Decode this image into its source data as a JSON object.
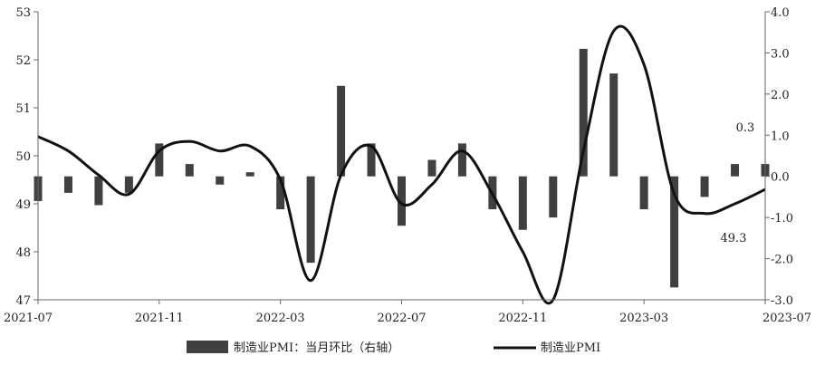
{
  "chart_data": {
    "type": "bar+line",
    "x": [
      "2021-07",
      "2021-08",
      "2021-09",
      "2021-10",
      "2021-11",
      "2021-12",
      "2022-01",
      "2022-02",
      "2022-03",
      "2022-04",
      "2022-05",
      "2022-06",
      "2022-07",
      "2022-08",
      "2022-09",
      "2022-10",
      "2022-11",
      "2022-12",
      "2023-01",
      "2023-02",
      "2023-03",
      "2023-04",
      "2023-05",
      "2023-06",
      "2023-07"
    ],
    "x_tick_labels": [
      "2021-07",
      "2021-11",
      "2022-03",
      "2022-07",
      "2022-11",
      "2023-03",
      "2023-07"
    ],
    "left_axis": {
      "ylim": [
        47,
        53
      ],
      "ticks": [
        "47",
        "48",
        "49",
        "50",
        "51",
        "52",
        "53"
      ]
    },
    "right_axis": {
      "ylim": [
        -3.0,
        4.0
      ],
      "ticks": [
        "-3.0",
        "-2.0",
        "-1.0",
        "0.0",
        "1.0",
        "2.0",
        "3.0",
        "4.0"
      ]
    },
    "series": [
      {
        "name": "制造业PMI：当月环比（右轴）",
        "kind": "bar",
        "axis": "right",
        "color": "#404040",
        "values": [
          -0.6,
          -0.4,
          -0.7,
          -0.4,
          0.8,
          0.3,
          -0.2,
          0.1,
          -0.8,
          -2.1,
          2.2,
          0.8,
          -1.2,
          0.4,
          0.8,
          -0.8,
          -1.3,
          -1.0,
          3.1,
          2.5,
          -0.8,
          -2.7,
          -0.5,
          0.3,
          0.3
        ]
      },
      {
        "name": "制造业PMI",
        "kind": "line",
        "axis": "left",
        "color": "#111111",
        "values": [
          50.4,
          50.1,
          49.6,
          49.2,
          50.1,
          50.3,
          50.1,
          50.2,
          49.5,
          47.4,
          49.6,
          50.2,
          49.0,
          49.4,
          50.1,
          49.2,
          48.0,
          47.0,
          50.1,
          52.6,
          51.9,
          49.2,
          48.8,
          49.0,
          49.3
        ]
      }
    ],
    "annotations": [
      {
        "text": "0.3",
        "series": "bar",
        "index": 24
      },
      {
        "text": "49.3",
        "series": "line",
        "index": 24
      }
    ],
    "legend": {
      "position": "bottom"
    },
    "grid": false
  }
}
